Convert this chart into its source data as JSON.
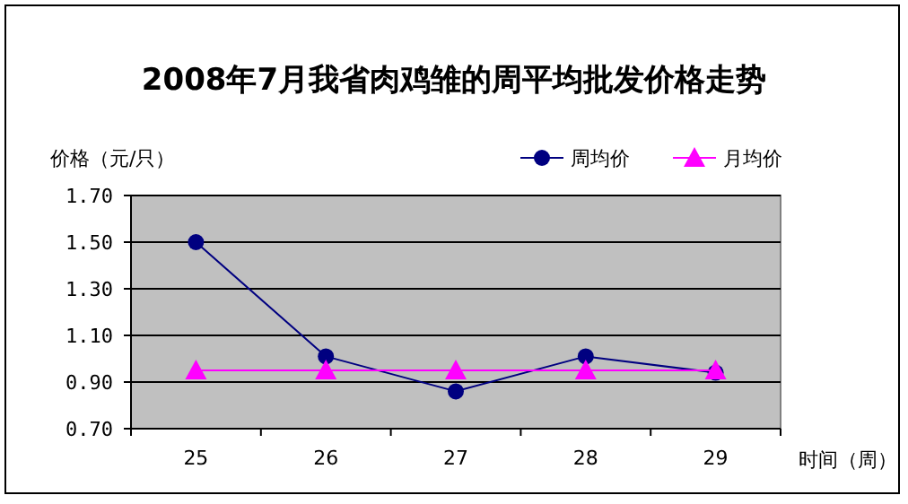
{
  "chart_data": {
    "type": "line",
    "title": "2008年7月我省肉鸡雏的周平均批发价格走势",
    "ylabel": "价格（元/只）",
    "xlabel": "时间（周）",
    "categories": [
      "25",
      "26",
      "27",
      "28",
      "29"
    ],
    "series": [
      {
        "name": "周均价",
        "color": "#000080",
        "marker": "circle",
        "values": [
          1.5,
          1.01,
          0.86,
          1.01,
          0.94
        ]
      },
      {
        "name": "月均价",
        "color": "#ff00ff",
        "marker": "triangle",
        "values": [
          0.95,
          0.95,
          0.95,
          0.95,
          0.95
        ]
      }
    ],
    "ylim": [
      0.7,
      1.7
    ],
    "yticks": [
      {
        "value": 0.7,
        "label": "0.70"
      },
      {
        "value": 0.9,
        "label": "0.90"
      },
      {
        "value": 1.1,
        "label": "1.10"
      },
      {
        "value": 1.3,
        "label": "1.30"
      },
      {
        "value": 1.5,
        "label": "1.50"
      },
      {
        "value": 1.7,
        "label": "1.70"
      }
    ],
    "grid": "y",
    "legend": "top right"
  }
}
